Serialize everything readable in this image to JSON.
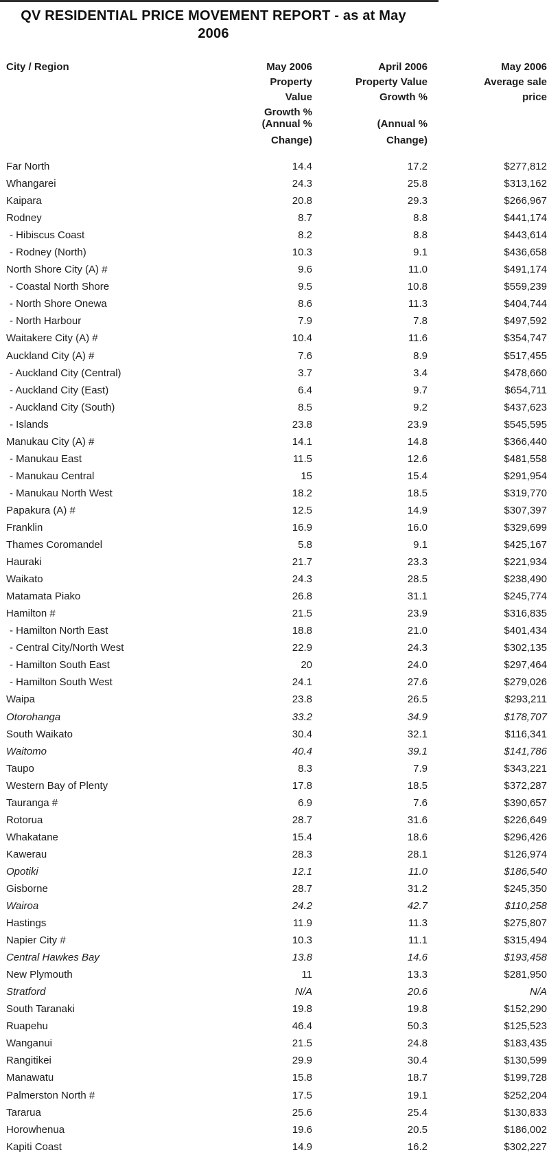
{
  "page": {
    "title_line1": "QV RESIDENTIAL PRICE MOVEMENT REPORT - as at May",
    "title_line2": "2006"
  },
  "colors": {
    "text": "#1c1c1c",
    "background": "#ffffff",
    "top_artifact": "#2e2e2e"
  },
  "table": {
    "header": {
      "city": "City / Region",
      "may_growth": [
        "May 2006",
        "Property Value",
        "Growth %"
      ],
      "april_growth": [
        "April 2006",
        "Property Value",
        "Growth %"
      ],
      "avg_price": [
        "May 2006",
        "Average sale",
        "price"
      ],
      "annual_note_line1": "(Annual %",
      "annual_note_line2": "Change)"
    },
    "rows": [
      {
        "label": "Far North",
        "may": "14.4",
        "april": "17.2",
        "price": "$277,812",
        "sub": false,
        "italic": false
      },
      {
        "label": "Whangarei",
        "may": "24.3",
        "april": "25.8",
        "price": "$313,162",
        "sub": false,
        "italic": false
      },
      {
        "label": "Kaipara",
        "may": "20.8",
        "april": "29.3",
        "price": "$266,967",
        "sub": false,
        "italic": false
      },
      {
        "label": "Rodney",
        "may": "8.7",
        "april": "8.8",
        "price": "$441,174",
        "sub": false,
        "italic": false
      },
      {
        "label": "- Hibiscus Coast",
        "may": "8.2",
        "april": "8.8",
        "price": "$443,614",
        "sub": true,
        "italic": false
      },
      {
        "label": "- Rodney (North)",
        "may": "10.3",
        "april": "9.1",
        "price": "$436,658",
        "sub": true,
        "italic": false
      },
      {
        "label": "North Shore City (A) #",
        "may": "9.6",
        "april": "11.0",
        "price": "$491,174",
        "sub": false,
        "italic": false
      },
      {
        "label": "- Coastal North Shore",
        "may": "9.5",
        "april": "10.8",
        "price": "$559,239",
        "sub": true,
        "italic": false
      },
      {
        "label": "- North Shore Onewa",
        "may": "8.6",
        "april": "11.3",
        "price": "$404,744",
        "sub": true,
        "italic": false
      },
      {
        "label": "- North Harbour",
        "may": "7.9",
        "april": "7.8",
        "price": "$497,592",
        "sub": true,
        "italic": false
      },
      {
        "label": "Waitakere City (A) #",
        "may": "10.4",
        "april": "11.6",
        "price": "$354,747",
        "sub": false,
        "italic": false
      },
      {
        "label": "Auckland City (A) #",
        "may": "7.6",
        "april": "8.9",
        "price": "$517,455",
        "sub": false,
        "italic": false
      },
      {
        "label": "- Auckland City (Central)",
        "may": "3.7",
        "april": "3.4",
        "price": "$478,660",
        "sub": true,
        "italic": false
      },
      {
        "label": "- Auckland City (East)",
        "may": "6.4",
        "april": "9.7",
        "price": "$654,711",
        "sub": true,
        "italic": false
      },
      {
        "label": "- Auckland City (South)",
        "may": "8.5",
        "april": "9.2",
        "price": "$437,623",
        "sub": true,
        "italic": false
      },
      {
        "label": "- Islands",
        "may": "23.8",
        "april": "23.9",
        "price": "$545,595",
        "sub": true,
        "italic": false
      },
      {
        "label": "Manukau City (A) #",
        "may": "14.1",
        "april": "14.8",
        "price": "$366,440",
        "sub": false,
        "italic": false
      },
      {
        "label": "- Manukau East",
        "may": "11.5",
        "april": "12.6",
        "price": "$481,558",
        "sub": true,
        "italic": false
      },
      {
        "label": "- Manukau Central",
        "may": "15",
        "april": "15.4",
        "price": "$291,954",
        "sub": true,
        "italic": false
      },
      {
        "label": "- Manukau North West",
        "may": "18.2",
        "april": "18.5",
        "price": "$319,770",
        "sub": true,
        "italic": false
      },
      {
        "label": "Papakura (A) #",
        "may": "12.5",
        "april": "14.9",
        "price": "$307,397",
        "sub": false,
        "italic": false
      },
      {
        "label": "Franklin",
        "may": "16.9",
        "april": "16.0",
        "price": "$329,699",
        "sub": false,
        "italic": false
      },
      {
        "label": "Thames Coromandel",
        "may": "5.8",
        "april": "9.1",
        "price": "$425,167",
        "sub": false,
        "italic": false
      },
      {
        "label": "Hauraki",
        "may": "21.7",
        "april": "23.3",
        "price": "$221,934",
        "sub": false,
        "italic": false
      },
      {
        "label": "Waikato",
        "may": "24.3",
        "april": "28.5",
        "price": "$238,490",
        "sub": false,
        "italic": false
      },
      {
        "label": "Matamata Piako",
        "may": "26.8",
        "april": "31.1",
        "price": "$245,774",
        "sub": false,
        "italic": false
      },
      {
        "label": "Hamilton #",
        "may": "21.5",
        "april": "23.9",
        "price": "$316,835",
        "sub": false,
        "italic": false
      },
      {
        "label": "- Hamilton North East",
        "may": "18.8",
        "april": "21.0",
        "price": "$401,434",
        "sub": true,
        "italic": false
      },
      {
        "label": "- Central City/North West",
        "may": "22.9",
        "april": "24.3",
        "price": "$302,135",
        "sub": true,
        "italic": false
      },
      {
        "label": "- Hamilton South East",
        "may": "20",
        "april": "24.0",
        "price": "$297,464",
        "sub": true,
        "italic": false
      },
      {
        "label": "- Hamilton South West",
        "may": "24.1",
        "april": "27.6",
        "price": "$279,026",
        "sub": true,
        "italic": false
      },
      {
        "label": "Waipa",
        "may": "23.8",
        "april": "26.5",
        "price": "$293,211",
        "sub": false,
        "italic": false
      },
      {
        "label": "Otorohanga",
        "may": "33.2",
        "april": "34.9",
        "price": "$178,707",
        "sub": false,
        "italic": true
      },
      {
        "label": "South Waikato",
        "may": "30.4",
        "april": "32.1",
        "price": "$116,341",
        "sub": false,
        "italic": false
      },
      {
        "label": "Waitomo",
        "may": "40.4",
        "april": "39.1",
        "price": "$141,786",
        "sub": false,
        "italic": true
      },
      {
        "label": "Taupo",
        "may": "8.3",
        "april": "7.9",
        "price": "$343,221",
        "sub": false,
        "italic": false
      },
      {
        "label": "Western Bay of Plenty",
        "may": "17.8",
        "april": "18.5",
        "price": "$372,287",
        "sub": false,
        "italic": false
      },
      {
        "label": "Tauranga #",
        "may": "6.9",
        "april": "7.6",
        "price": "$390,657",
        "sub": false,
        "italic": false
      },
      {
        "label": "Rotorua",
        "may": "28.7",
        "april": "31.6",
        "price": "$226,649",
        "sub": false,
        "italic": false
      },
      {
        "label": "Whakatane",
        "may": "15.4",
        "april": "18.6",
        "price": "$296,426",
        "sub": false,
        "italic": false
      },
      {
        "label": "Kawerau",
        "may": "28.3",
        "april": "28.1",
        "price": "$126,974",
        "sub": false,
        "italic": false
      },
      {
        "label": "Opotiki",
        "may": "12.1",
        "april": "11.0",
        "price": "$186,540",
        "sub": false,
        "italic": true
      },
      {
        "label": "Gisborne",
        "may": "28.7",
        "april": "31.2",
        "price": "$245,350",
        "sub": false,
        "italic": false
      },
      {
        "label": "Wairoa",
        "may": "24.2",
        "april": "42.7",
        "price": "$110,258",
        "sub": false,
        "italic": true
      },
      {
        "label": "Hastings",
        "may": "11.9",
        "april": "11.3",
        "price": "$275,807",
        "sub": false,
        "italic": false
      },
      {
        "label": "Napier City #",
        "may": "10.3",
        "april": "11.1",
        "price": "$315,494",
        "sub": false,
        "italic": false
      },
      {
        "label": "Central Hawkes Bay",
        "may": "13.8",
        "april": "14.6",
        "price": "$193,458",
        "sub": false,
        "italic": true
      },
      {
        "label": "New Plymouth",
        "may": "11",
        "april": "13.3",
        "price": "$281,950",
        "sub": false,
        "italic": false
      },
      {
        "label": "Stratford",
        "may": "N/A",
        "april": "20.6",
        "price": "N/A",
        "sub": false,
        "italic": true
      },
      {
        "label": "South Taranaki",
        "may": "19.8",
        "april": "19.8",
        "price": "$152,290",
        "sub": false,
        "italic": false
      },
      {
        "label": "Ruapehu",
        "may": "46.4",
        "april": "50.3",
        "price": "$125,523",
        "sub": false,
        "italic": false
      },
      {
        "label": "Wanganui",
        "may": "21.5",
        "april": "24.8",
        "price": "$183,435",
        "sub": false,
        "italic": false
      },
      {
        "label": "Rangitikei",
        "may": "29.9",
        "april": "30.4",
        "price": "$130,599",
        "sub": false,
        "italic": false
      },
      {
        "label": "Manawatu",
        "may": "15.8",
        "april": "18.7",
        "price": "$199,728",
        "sub": false,
        "italic": false
      },
      {
        "label": "Palmerston North #",
        "may": "17.5",
        "april": "19.1",
        "price": "$252,204",
        "sub": false,
        "italic": false
      },
      {
        "label": "Tararua",
        "may": "25.6",
        "april": "25.4",
        "price": "$130,833",
        "sub": false,
        "italic": false
      },
      {
        "label": "Horowhenua",
        "may": "19.6",
        "april": "20.5",
        "price": "$186,002",
        "sub": false,
        "italic": false
      },
      {
        "label": "Kapiti Coast",
        "may": "14.9",
        "april": "16.2",
        "price": "$302,227",
        "sub": false,
        "italic": false
      }
    ]
  }
}
